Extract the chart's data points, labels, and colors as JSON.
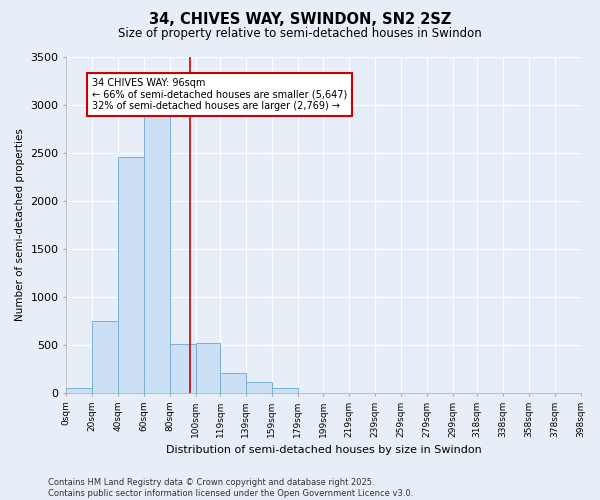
{
  "title": "34, CHIVES WAY, SWINDON, SN2 2SZ",
  "subtitle": "Size of property relative to semi-detached houses in Swindon",
  "xlabel": "Distribution of semi-detached houses by size in Swindon",
  "ylabel": "Number of semi-detached properties",
  "bins": [
    0,
    20,
    40,
    60,
    80,
    100,
    119,
    139,
    159,
    179,
    199,
    219,
    239,
    259,
    279,
    299,
    318,
    338,
    358,
    378,
    398
  ],
  "bin_labels": [
    "0sqm",
    "20sqm",
    "40sqm",
    "60sqm",
    "80sqm",
    "100sqm",
    "119sqm",
    "139sqm",
    "159sqm",
    "179sqm",
    "199sqm",
    "219sqm",
    "239sqm",
    "259sqm",
    "279sqm",
    "299sqm",
    "318sqm",
    "338sqm",
    "358sqm",
    "378sqm",
    "398sqm"
  ],
  "counts": [
    50,
    750,
    2450,
    2900,
    510,
    520,
    200,
    110,
    50,
    0,
    0,
    0,
    0,
    0,
    0,
    0,
    0,
    0,
    0,
    0
  ],
  "bar_color": "#cce0f5",
  "bar_edge_color": "#7aafd4",
  "ylim": [
    0,
    3500
  ],
  "yticks": [
    0,
    500,
    1000,
    1500,
    2000,
    2500,
    3000,
    3500
  ],
  "property_size": 96,
  "property_label": "34 CHIVES WAY: 96sqm",
  "annotation_line1": "← 66% of semi-detached houses are smaller (5,647)",
  "annotation_line2": "32% of semi-detached houses are larger (2,769) →",
  "vline_color": "#cc0000",
  "annotation_box_color": "#ffffff",
  "annotation_box_edge": "#cc0000",
  "background_color": "#e8eef8",
  "grid_color": "#ffffff",
  "footnote1": "Contains HM Land Registry data © Crown copyright and database right 2025.",
  "footnote2": "Contains public sector information licensed under the Open Government Licence v3.0."
}
